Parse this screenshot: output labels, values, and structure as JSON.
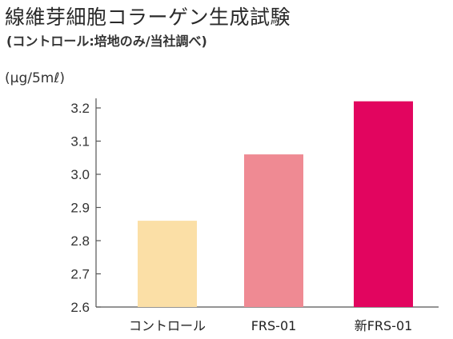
{
  "title": "線維芽細胞コラーゲン生成試験",
  "subtitle": "(コントロール:培地のみ/当社調べ)",
  "chart_data": {
    "type": "bar",
    "categories": [
      "コントロール",
      "FRS-01",
      "新FRS-01"
    ],
    "values": [
      2.86,
      3.06,
      3.22
    ],
    "colors": [
      "#fbdfa6",
      "#ef8a93",
      "#e2055f"
    ],
    "ylabel": "(μg/5mℓ)",
    "ylim": [
      2.6,
      3.2
    ],
    "yticks": [
      "2.6",
      "2.7",
      "2.8",
      "2.9",
      "3.0",
      "3.1",
      "3.2"
    ],
    "grid": false,
    "legend": "none"
  }
}
